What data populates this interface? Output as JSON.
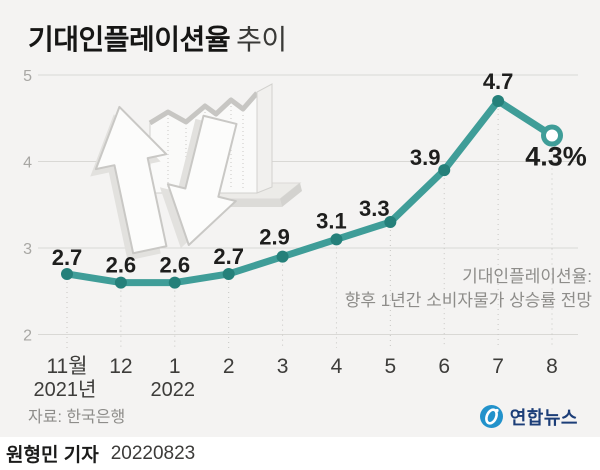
{
  "header": {
    "title_bold": "기대인플레이션율",
    "title_light": "추이"
  },
  "chart_data": {
    "type": "line",
    "title": "기대인플레이션율 추이",
    "categories": [
      "11월",
      "12",
      "1",
      "2",
      "3",
      "4",
      "5",
      "6",
      "7",
      "8"
    ],
    "sub_labels": [
      {
        "index": 0,
        "label": "2021년"
      },
      {
        "index": 2,
        "label": "2022"
      }
    ],
    "values": [
      2.7,
      2.6,
      2.6,
      2.7,
      2.9,
      3.1,
      3.3,
      3.9,
      4.7,
      4.3
    ],
    "point_labels": [
      "2.7",
      "2.6",
      "2.6",
      "2.7",
      "2.9",
      "3.1",
      "3.3",
      "3.9",
      "4.7",
      "4.3%"
    ],
    "yticks": [
      5,
      4,
      3,
      2
    ],
    "ylim": [
      2,
      5
    ],
    "grid": "horizontal solid lines + dotted drop lines from each point",
    "legend": "none",
    "last_point_style": "open-circle",
    "annotation": {
      "line1": "기대인플레이션율:",
      "line2": "향후 1년간 소비자물가 상승률 전망"
    }
  },
  "source": {
    "label": "자료: 한국은행"
  },
  "footer": {
    "reporter": "원형민 기자",
    "date": "20220823"
  },
  "logo": {
    "name": "연합뉴스"
  },
  "colors": {
    "background": "#f4f3f2",
    "footer_bg": "#ffffff",
    "line": "#3f9d98",
    "dot": "#25807a",
    "grid": "#d9d8d5",
    "drop_line": "#c7c6c3",
    "value_label": "#1e1e1d",
    "axis_label": "#3d3c3a",
    "ytick_label": "#a8a7a4",
    "logo_blue": "#2292cb",
    "logo_navy": "#1c3e78"
  }
}
